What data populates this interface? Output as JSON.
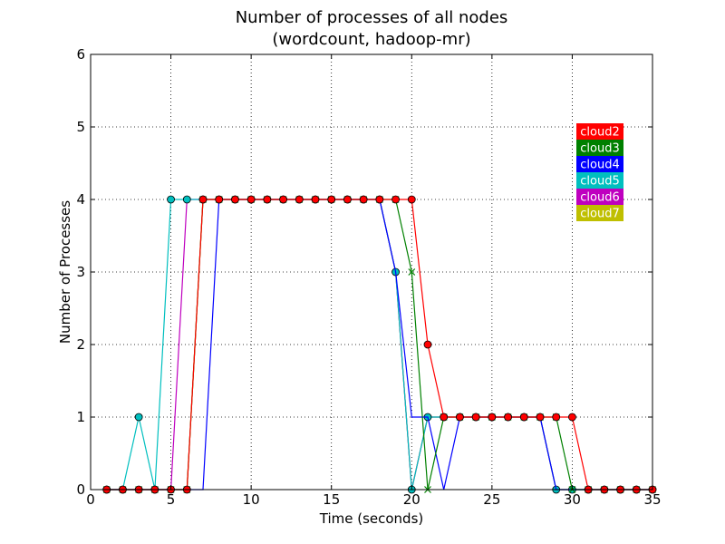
{
  "chart_data": {
    "type": "line",
    "title": "Number of processes of all nodes",
    "subtitle": "(wordcount, hadoop-mr)",
    "xlabel": "Time (seconds)",
    "ylabel": "Number of Processes",
    "xlim": [
      0,
      35
    ],
    "ylim": [
      0,
      6
    ],
    "xticks": [
      0,
      5,
      10,
      15,
      20,
      25,
      30,
      35
    ],
    "yticks": [
      0,
      1,
      2,
      3,
      4,
      5,
      6
    ],
    "grid": true,
    "legend_position": "right",
    "x": [
      1,
      2,
      3,
      4,
      5,
      6,
      7,
      8,
      9,
      10,
      11,
      12,
      13,
      14,
      15,
      16,
      17,
      18,
      19,
      20,
      21,
      22,
      23,
      24,
      25,
      26,
      27,
      28,
      29,
      30,
      31,
      32,
      33,
      34,
      35
    ],
    "series": [
      {
        "name": "cloud2",
        "color": "#ff0000",
        "marker": "circle",
        "values": [
          0,
          0,
          0,
          0,
          0,
          0,
          4,
          4,
          4,
          4,
          4,
          4,
          4,
          4,
          4,
          4,
          4,
          4,
          4,
          4,
          2,
          1,
          1,
          1,
          1,
          1,
          1,
          1,
          1,
          1,
          0,
          0,
          0,
          0,
          0
        ]
      },
      {
        "name": "cloud3",
        "color": "#008000",
        "marker": "x",
        "values": [
          0,
          0,
          0,
          0,
          0,
          0,
          4,
          4,
          4,
          4,
          4,
          4,
          4,
          4,
          4,
          4,
          4,
          4,
          4,
          3,
          0,
          1,
          1,
          1,
          1,
          1,
          1,
          1,
          1,
          0,
          0,
          0,
          0,
          0,
          0
        ]
      },
      {
        "name": "cloud4",
        "color": "#0000ff",
        "marker": "none",
        "values": [
          0,
          0,
          0,
          0,
          0,
          0,
          0,
          4,
          4,
          4,
          4,
          4,
          4,
          4,
          4,
          4,
          4,
          4,
          3,
          1,
          1,
          0,
          1,
          1,
          1,
          1,
          1,
          1,
          0,
          0,
          0,
          0,
          0,
          0,
          0
        ]
      },
      {
        "name": "cloud5",
        "color": "#00bfbf",
        "marker": "circle",
        "values": [
          0,
          0,
          1,
          0,
          4,
          4,
          4,
          4,
          4,
          4,
          4,
          4,
          4,
          4,
          4,
          4,
          4,
          4,
          3,
          0,
          1,
          1,
          1,
          1,
          1,
          1,
          1,
          1,
          0,
          0,
          0,
          0,
          0,
          0,
          0
        ]
      },
      {
        "name": "cloud6",
        "color": "#bf00bf",
        "marker": "none",
        "values": [
          0,
          0,
          0,
          0,
          0,
          4,
          4,
          4,
          4,
          4,
          4,
          4,
          4,
          4,
          4,
          4,
          4,
          4,
          3,
          0,
          1,
          1,
          1,
          1,
          1,
          1,
          1,
          1,
          0,
          0,
          0,
          0,
          0,
          0,
          0
        ]
      },
      {
        "name": "cloud7",
        "color": "#bfbf00",
        "marker": "none",
        "values": [
          0,
          0,
          0,
          0,
          0,
          0,
          4,
          4,
          4,
          4,
          4,
          4,
          4,
          4,
          4,
          4,
          4,
          4,
          3,
          0,
          1,
          1,
          1,
          1,
          1,
          1,
          1,
          1,
          0,
          0,
          0,
          0,
          0,
          0,
          0
        ]
      }
    ],
    "draw_order": [
      "cloud7",
      "cloud6",
      "cloud5",
      "cloud4",
      "cloud3",
      "cloud2"
    ]
  }
}
